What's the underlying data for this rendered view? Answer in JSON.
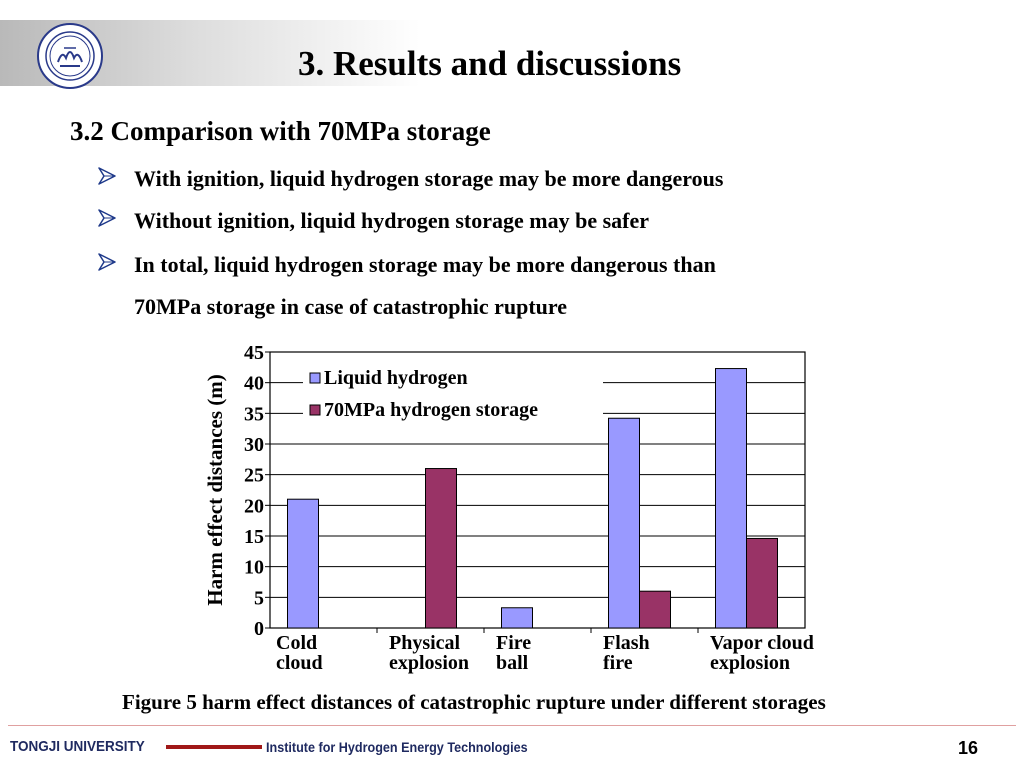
{
  "slide": {
    "title": "3. Results and discussions",
    "section": "3.2 Comparison with 70MPa storage",
    "bullets": [
      "With ignition, liquid hydrogen storage may be more dangerous",
      "Without ignition, liquid hydrogen storage may be safer",
      "In total, liquid hydrogen storage may be more dangerous than"
    ],
    "bullet_continuation": "70MPa storage in case of catastrophic rupture",
    "caption": "Figure 5 harm effect distances of catastrophic rupture under different storages"
  },
  "footer": {
    "university": "TONGJI UNIVERSITY",
    "institute": "Institute for Hydrogen Energy Technologies",
    "page": "16"
  },
  "colors": {
    "liquid": "#9999ff",
    "storage70": "#993366",
    "footer_text": "#1f2a60",
    "footer_accent": "#a01818",
    "bullet_arrow": "#1f3a8a"
  },
  "chart_data": {
    "type": "bar",
    "categories": [
      [
        "Cold",
        "cloud"
      ],
      [
        "Physical",
        "explosion"
      ],
      [
        "Fire",
        "ball"
      ],
      [
        "Flash",
        "fire"
      ],
      [
        "Vapor cloud",
        "explosion"
      ]
    ],
    "series": [
      {
        "name": "Liquid hydrogen",
        "values": [
          21,
          null,
          3.3,
          34.2,
          42.3
        ],
        "color": "#9999ff"
      },
      {
        "name": "70MPa hydrogen storage",
        "values": [
          null,
          26,
          null,
          6,
          14.6
        ],
        "color": "#993366"
      }
    ],
    "ylabel": "Harm effect distances (m)",
    "ylim": [
      0,
      45
    ],
    "yticks": [
      0,
      5,
      10,
      15,
      20,
      25,
      30,
      35,
      40,
      45
    ],
    "grid": true,
    "legend_position": "top-left"
  }
}
